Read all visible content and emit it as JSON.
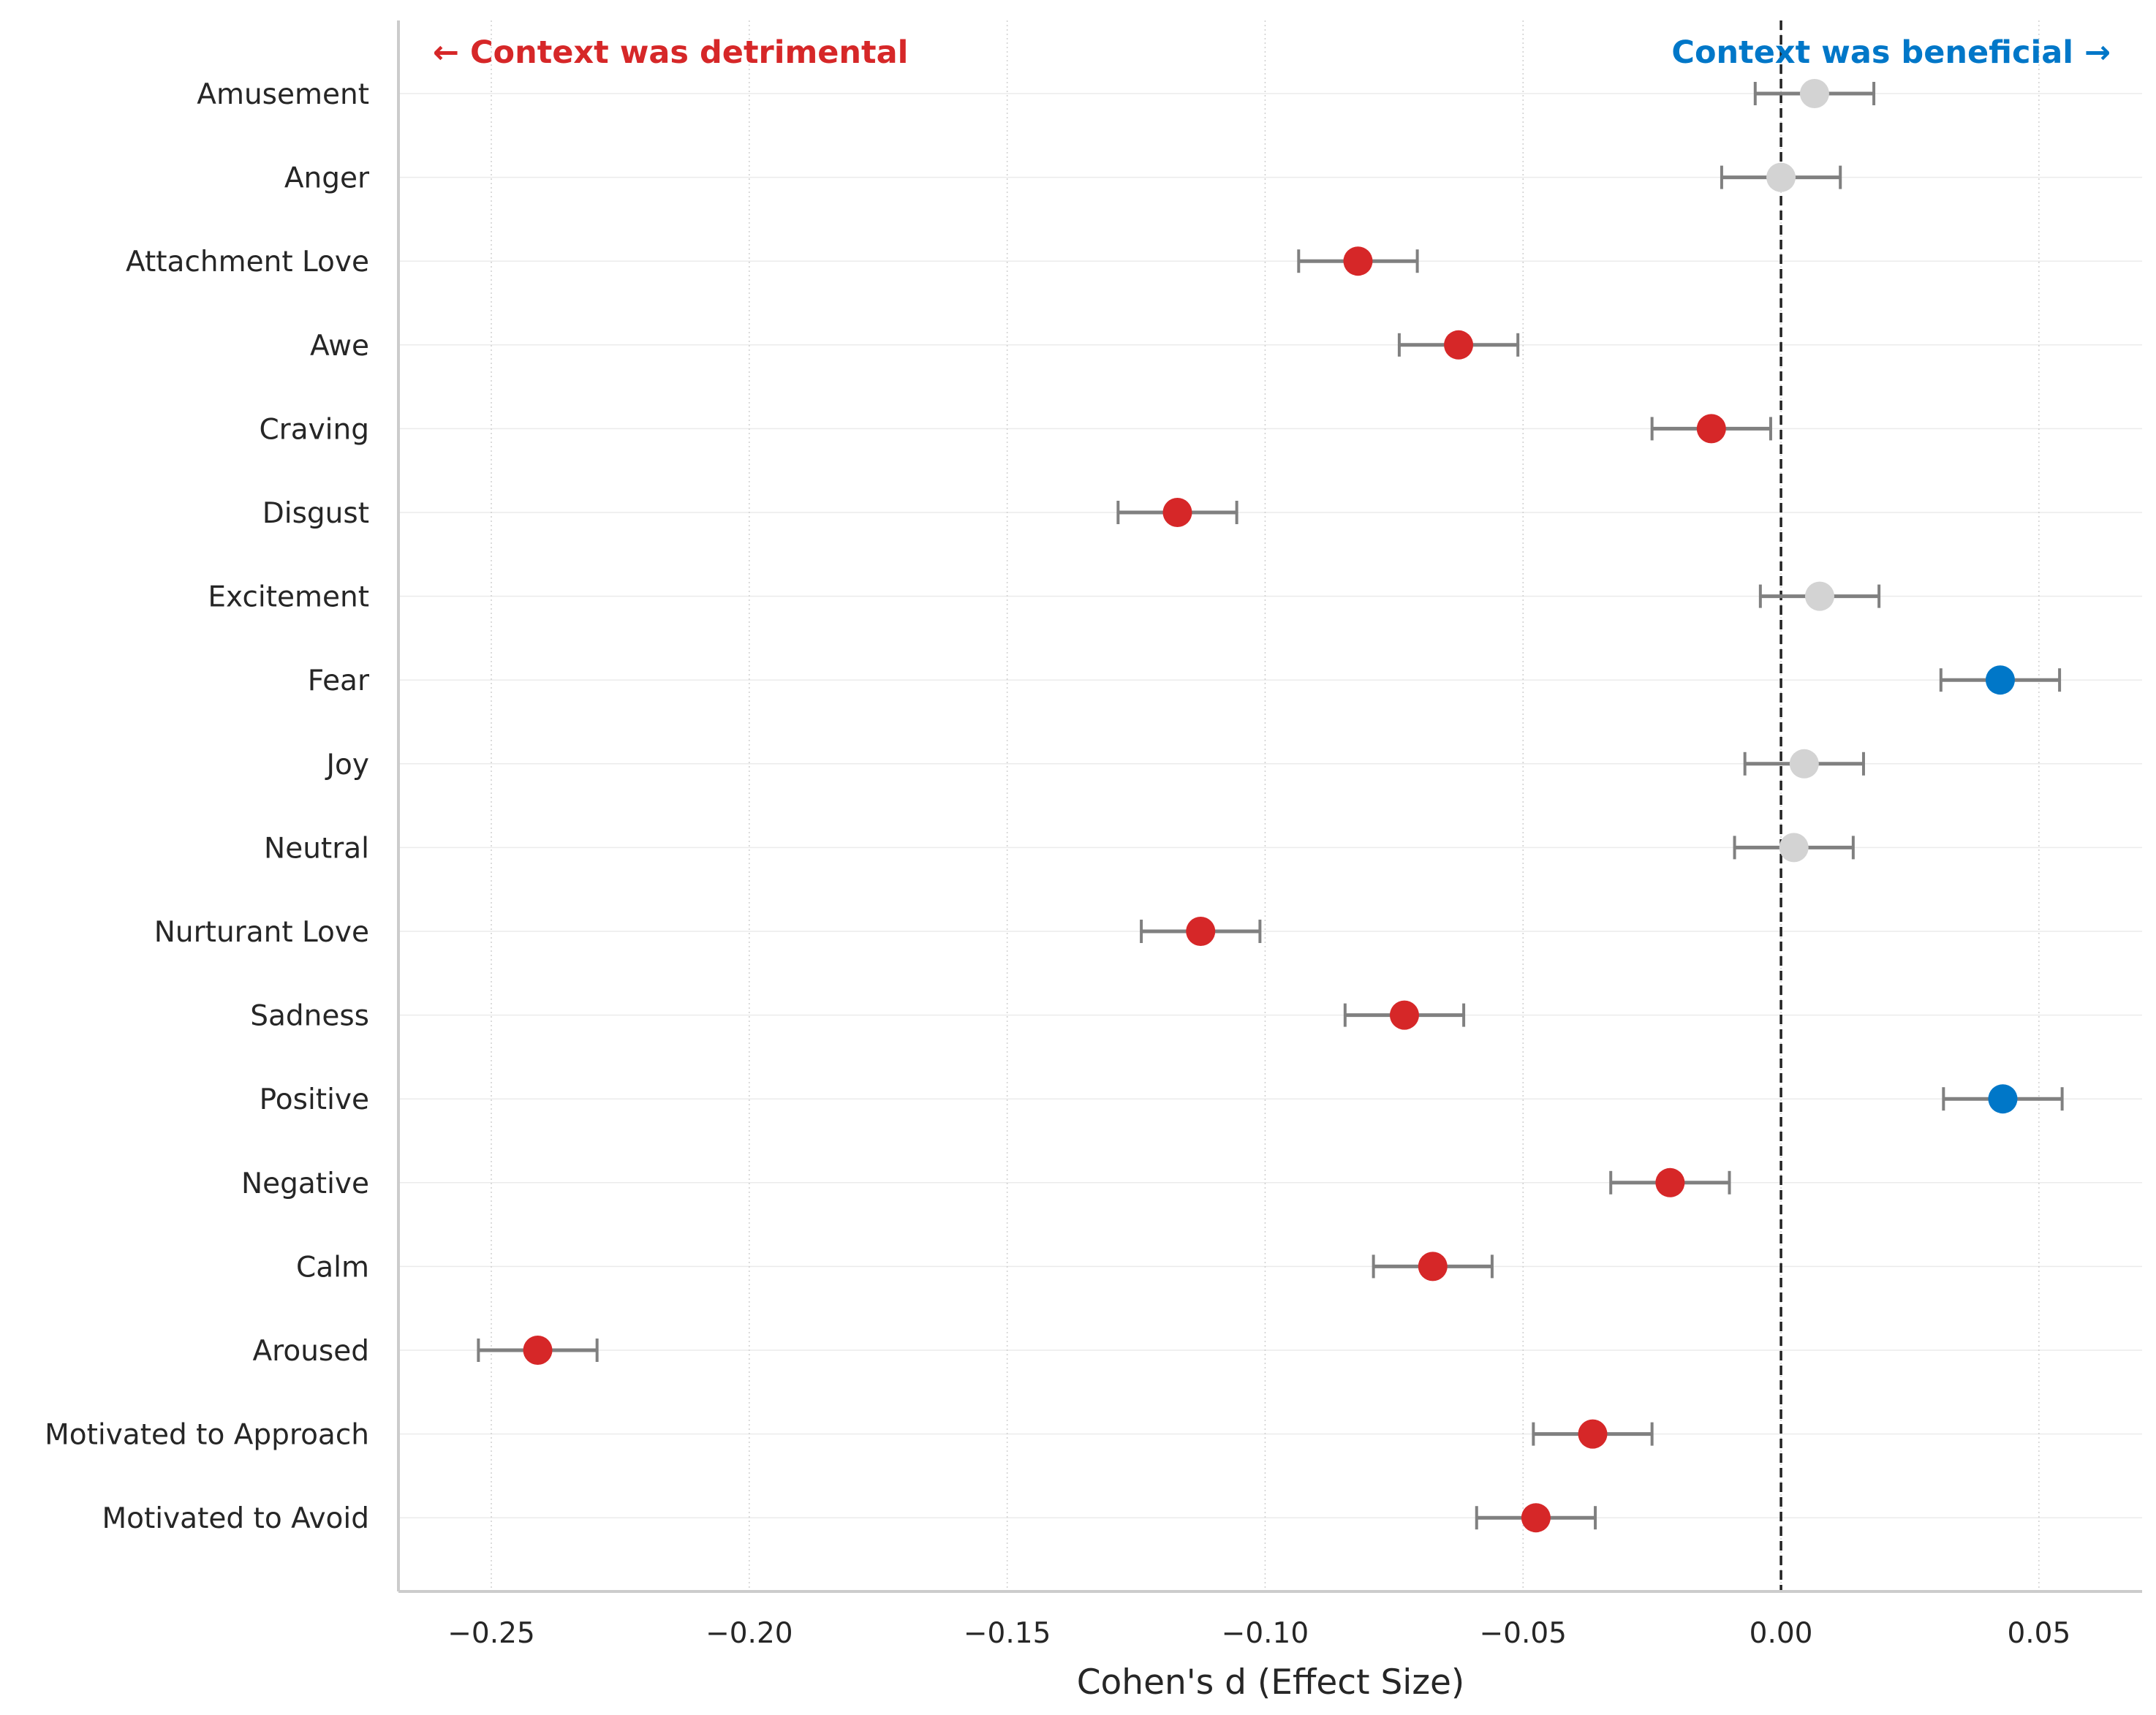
{
  "chart_data": {
    "type": "forest",
    "xlabel": "Cohen's d (Effect Size)",
    "xlim": [
      -0.268,
      0.07
    ],
    "xticks": [
      -0.25,
      -0.2,
      -0.15,
      -0.1,
      -0.05,
      0.0,
      0.05
    ],
    "xtick_labels": [
      "−0.25",
      "−0.20",
      "−0.15",
      "−0.10",
      "−0.05",
      "0.00",
      "0.05"
    ],
    "reference_line": 0.0,
    "annotations": {
      "left": "← Context was detrimental",
      "right": "Context was beneficial →"
    },
    "colors": {
      "detrimental": "#d62728",
      "beneficial": "#0077c8",
      "neutral": "#d3d3d3",
      "errorbar": "#808080",
      "left_annotation": "#d62728",
      "right_annotation": "#0077c8"
    },
    "grid": true,
    "categories": [
      "Amusement",
      "Anger",
      "Attachment Love",
      "Awe",
      "Craving",
      "Disgust",
      "Excitement",
      "Fear",
      "Joy",
      "Neutral",
      "Nurturant Love",
      "Sadness",
      "Positive",
      "Negative",
      "Calm",
      "Aroused",
      "Motivated to Approach",
      "Motivated to Avoid"
    ],
    "values": [
      0.0065,
      0.0,
      -0.082,
      -0.0625,
      -0.0135,
      -0.117,
      0.0075,
      0.0425,
      0.0045,
      0.0025,
      -0.1125,
      -0.073,
      0.043,
      -0.0215,
      -0.0675,
      -0.241,
      -0.0365,
      -0.0475
    ],
    "ci_lower": [
      -0.005,
      -0.0115,
      -0.0935,
      -0.074,
      -0.025,
      -0.1285,
      -0.004,
      0.031,
      -0.007,
      -0.009,
      -0.124,
      -0.0845,
      0.0315,
      -0.033,
      -0.079,
      -0.2525,
      -0.048,
      -0.059
    ],
    "ci_upper": [
      0.018,
      0.0115,
      -0.0705,
      -0.051,
      -0.002,
      -0.1055,
      0.019,
      0.054,
      0.016,
      0.014,
      -0.101,
      -0.0615,
      0.0545,
      -0.01,
      -0.056,
      -0.2295,
      -0.025,
      -0.036
    ],
    "significance": [
      "ns",
      "ns",
      "neg",
      "neg",
      "neg",
      "neg",
      "ns",
      "pos",
      "ns",
      "ns",
      "neg",
      "neg",
      "pos",
      "neg",
      "neg",
      "neg",
      "neg",
      "neg"
    ]
  }
}
